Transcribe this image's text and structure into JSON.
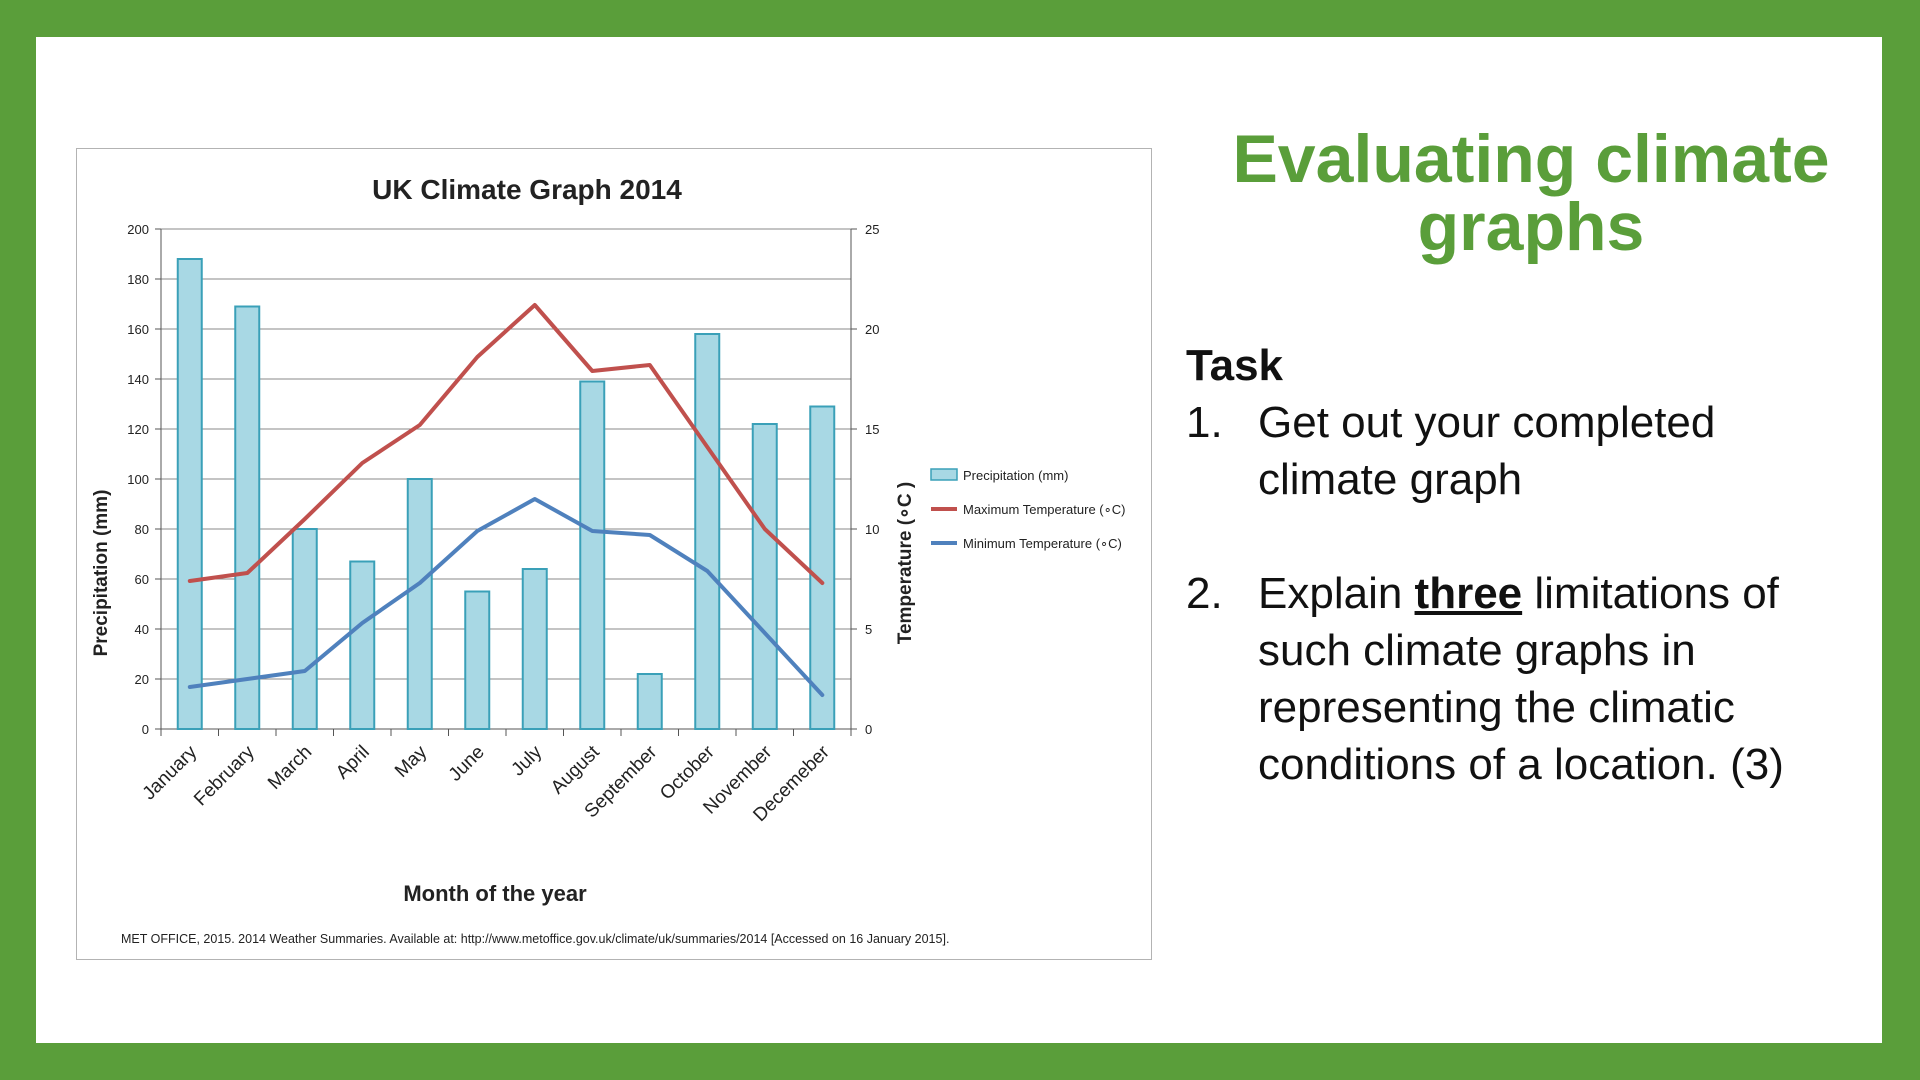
{
  "slide": {
    "title": "Evaluating climate graphs",
    "task_heading": "Task",
    "items": [
      {
        "number": "1.",
        "text": "Get out your completed climate graph"
      },
      {
        "number": "2.",
        "text_before": "Explain ",
        "emphasis": "three",
        "text_after": " limitations of such climate graphs in representing the climatic conditions of a location. (3)"
      }
    ],
    "colors": {
      "frame": "#5a9e3a",
      "title": "#5a9e3a"
    }
  },
  "chart_data": {
    "type": "bar",
    "title": "UK Climate Graph 2014",
    "xlabel": "Month of the year",
    "ylabel": "Precipitation (mm)",
    "y2label": "Temperature (∘C )",
    "ylim": [
      0,
      200
    ],
    "y2lim": [
      0,
      25
    ],
    "yticks": [
      0,
      20,
      40,
      60,
      80,
      100,
      120,
      140,
      160,
      180,
      200
    ],
    "y2ticks": [
      0,
      5,
      10,
      15,
      20,
      25
    ],
    "grid": true,
    "legend_position": "right",
    "categories": [
      "January",
      "February",
      "March",
      "April",
      "May",
      "June",
      "July",
      "August",
      "September",
      "October",
      "November",
      "Decemeber"
    ],
    "series": [
      {
        "name": "Precipitation (mm)",
        "type": "bar",
        "axis": "left",
        "color": "#a8d8e4",
        "stroke": "#3aa0b8",
        "values": [
          188,
          169,
          80,
          67,
          100,
          55,
          64,
          139,
          22,
          158,
          122,
          129
        ]
      },
      {
        "name": "Maximum Temperature (∘C)",
        "type": "line",
        "axis": "right",
        "color": "#c0504d",
        "values": [
          7.4,
          7.8,
          10.5,
          13.3,
          15.2,
          18.6,
          21.2,
          17.9,
          18.2,
          14.1,
          10.0,
          7.3
        ]
      },
      {
        "name": "Minimum Temperature (∘C)",
        "type": "line",
        "axis": "right",
        "color": "#4f81bd",
        "values": [
          2.1,
          2.5,
          2.9,
          5.3,
          7.3,
          9.9,
          11.5,
          9.9,
          9.7,
          7.9,
          4.8,
          1.7
        ]
      }
    ],
    "source": "MET OFFICE, 2015. 2014 Weather Summaries. Available at: http://www.metoffice.gov.uk/climate/uk/summaries/2014 [Accessed on 16 January 2015]."
  }
}
